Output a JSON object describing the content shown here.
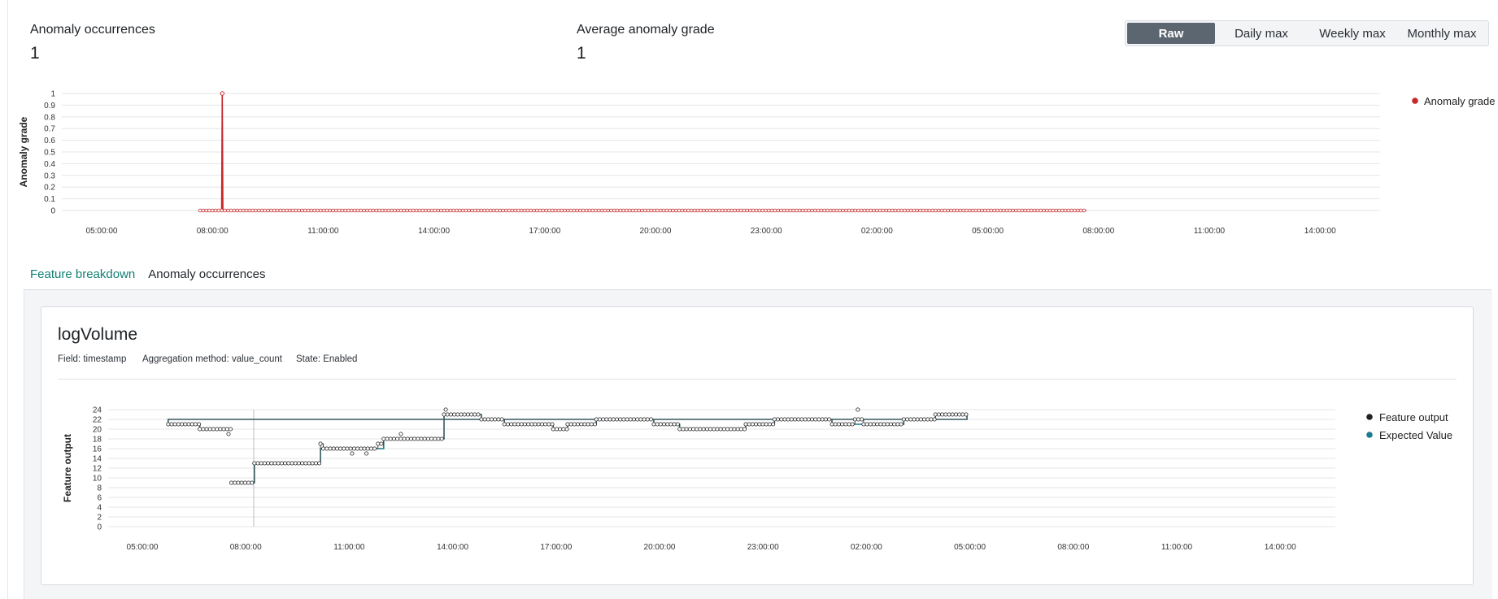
{
  "summary": {
    "occurrences_label": "Anomaly occurrences",
    "occurrences_value": "1",
    "avg_grade_label": "Average anomaly grade",
    "avg_grade_value": "1"
  },
  "range_toggle": {
    "options": [
      "Raw",
      "Daily max",
      "Weekly max",
      "Monthly max"
    ],
    "selected": "Raw"
  },
  "tabs": {
    "items": [
      "Feature breakdown",
      "Anomaly occurrences"
    ],
    "active": "Feature breakdown"
  },
  "feature": {
    "name": "logVolume",
    "field": "Field: timestamp",
    "aggregation": "Aggregation method: value_count",
    "state": "State: Enabled"
  },
  "colors": {
    "anomaly": "#c62828",
    "feature_output": "#222222",
    "expected": "#1c7c8f",
    "active_tab": "#0f7f73"
  },
  "chart_data": [
    {
      "type": "line",
      "ylabel": "Anomaly grade",
      "xlabel": "",
      "ylim": [
        0,
        1
      ],
      "yticks": [
        0,
        0.1,
        0.2,
        0.3,
        0.4,
        0.5,
        0.6,
        0.7,
        0.8,
        0.9,
        1
      ],
      "xticks": [
        "05:00:00",
        "08:00:00",
        "11:00:00",
        "14:00:00",
        "17:00:00",
        "20:00:00",
        "23:00:00",
        "02:00:00",
        "05:00:00",
        "08:00:00",
        "11:00:00",
        "14:00:00"
      ],
      "legend": [
        "Anomaly grade"
      ],
      "legend_position": "right",
      "grid": true,
      "series": [
        {
          "name": "Anomaly grade",
          "points": [
            [
              "07:40:00",
              0
            ],
            [
              "08:15:00",
              0
            ],
            [
              "08:16:00",
              1
            ],
            [
              "08:17:00",
              0
            ],
            [
              "07:40:00+1d",
              0
            ]
          ]
        }
      ]
    },
    {
      "type": "line",
      "ylabel": "Feature output",
      "xlabel": "",
      "ylim": [
        0,
        24
      ],
      "yticks": [
        0,
        2,
        4,
        6,
        8,
        10,
        12,
        14,
        16,
        18,
        20,
        22,
        24
      ],
      "xticks": [
        "05:00:00",
        "08:00:00",
        "11:00:00",
        "14:00:00",
        "17:00:00",
        "20:00:00",
        "23:00:00",
        "02:00:00",
        "05:00:00",
        "08:00:00",
        "11:00:00",
        "14:00:00"
      ],
      "legend": [
        "Feature output",
        "Expected Value"
      ],
      "legend_position": "right",
      "grid": true,
      "series": [
        {
          "name": "Feature output",
          "step_points": [
            [
              "07:35:00",
              9
            ],
            [
              "08:15:00",
              13
            ],
            [
              "10:10:00",
              17
            ],
            [
              "10:15:00",
              16
            ],
            [
              "11:50:00",
              17
            ],
            [
              "12:00:00",
              18
            ],
            [
              "13:45:00",
              23
            ],
            [
              "14:50:00",
              22
            ],
            [
              "15:30:00",
              21
            ],
            [
              "16:55:00",
              20
            ],
            [
              "17:20:00",
              21
            ],
            [
              "18:10:00",
              22
            ],
            [
              "19:50:00",
              21
            ],
            [
              "20:35:00",
              20
            ],
            [
              "22:30:00",
              21
            ],
            [
              "23:20:00",
              22
            ],
            [
              "01:00:00",
              21
            ],
            [
              "01:40:00",
              22
            ],
            [
              "01:55:00",
              21
            ],
            [
              "03:05:00",
              22
            ],
            [
              "04:00:00",
              23
            ],
            [
              "04:55:00",
              22
            ],
            [
              "05:45:00",
              21
            ],
            [
              "06:40:00",
              20
            ],
            [
              "07:35:00",
              20
            ]
          ],
          "outliers": [
            [
              "01:45:00",
              24
            ],
            [
              "13:48:00",
              24
            ],
            [
              "11:05:00",
              15
            ],
            [
              "11:30:00",
              15
            ],
            [
              "07:30:00",
              19
            ],
            [
              "12:30:00",
              19
            ]
          ]
        },
        {
          "name": "Expected Value",
          "step_points": [
            [
              "07:35:00",
              9
            ],
            [
              "08:15:00",
              13
            ],
            [
              "10:10:00",
              16
            ],
            [
              "12:00:00",
              18
            ],
            [
              "13:45:00",
              23
            ],
            [
              "14:50:00",
              22
            ],
            [
              "15:30:00",
              21
            ],
            [
              "16:55:00",
              20
            ],
            [
              "17:20:00",
              21
            ],
            [
              "18:10:00",
              22
            ],
            [
              "19:50:00",
              21
            ],
            [
              "20:35:00",
              20
            ],
            [
              "22:30:00",
              21
            ],
            [
              "23:20:00",
              22
            ],
            [
              "01:00:00",
              21
            ],
            [
              "03:05:00",
              22
            ],
            [
              "04:00:00",
              23
            ],
            [
              "04:55:00",
              22
            ],
            [
              "05:45:00",
              21
            ],
            [
              "06:40:00",
              20
            ],
            [
              "07:35:00",
              20
            ]
          ]
        }
      ]
    }
  ]
}
